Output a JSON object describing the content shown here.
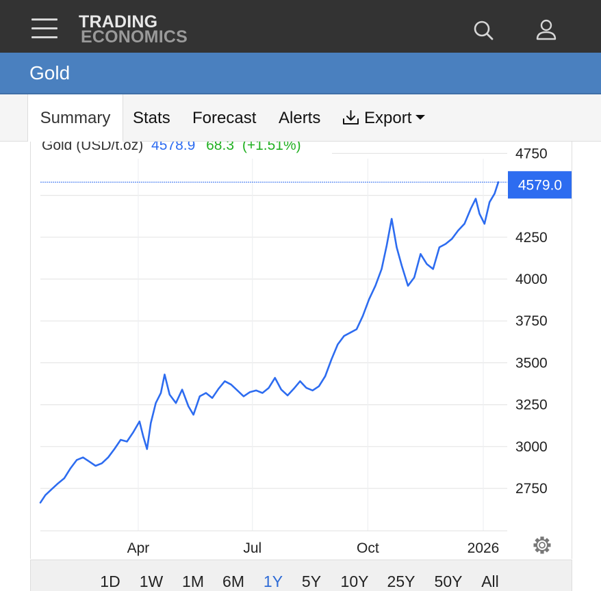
{
  "header": {
    "brand_line1": "TRADING",
    "brand_line2": "ECONOMICS",
    "menu_icon": "hamburger-menu-icon",
    "search_icon": "search-icon",
    "user_icon": "user-icon"
  },
  "page": {
    "title": "Gold"
  },
  "tabs": [
    "Summary",
    "Stats",
    "Forecast",
    "Alerts",
    "Export"
  ],
  "active_tab": "Summary",
  "legend": {
    "name": "Gold (USD/t.oz)",
    "price": "4578.9",
    "change": "68.3",
    "change_pct": "(+1.51%)"
  },
  "price_tag": "4579.0",
  "settings_icon": "gear-icon",
  "ranges": [
    "1D",
    "1W",
    "1M",
    "6M",
    "1Y",
    "5Y",
    "10Y",
    "25Y",
    "50Y",
    "All"
  ],
  "active_range": "1Y",
  "colors": {
    "line": "#2d6cf0",
    "accent": "#2e6bd6",
    "positive": "#22b022",
    "header_bg": "#333333",
    "title_bg": "#4a80bf"
  },
  "chart_data": {
    "type": "line",
    "title": "Gold (USD/t.oz)",
    "xlabel": "",
    "ylabel": "",
    "ylim": [
      2600,
      4800
    ],
    "y_ticks": [
      2750,
      3000,
      3250,
      3500,
      3750,
      4000,
      4250,
      4750
    ],
    "x_ticks": [
      "Apr",
      "Jul",
      "Oct",
      "2026"
    ],
    "x_tick_dates": [
      "2025-04-01",
      "2025-07-01",
      "2025-10-01",
      "2026-01-01"
    ],
    "current_value": 4579.0,
    "grid": true,
    "series": [
      {
        "name": "Gold (USD/t.oz)",
        "x": [
          "2025-01-13",
          "2025-01-17",
          "2025-01-22",
          "2025-01-27",
          "2025-02-01",
          "2025-02-06",
          "2025-02-11",
          "2025-02-16",
          "2025-02-21",
          "2025-02-26",
          "2025-03-03",
          "2025-03-08",
          "2025-03-13",
          "2025-03-18",
          "2025-03-23",
          "2025-03-28",
          "2025-04-02",
          "2025-04-05",
          "2025-04-08",
          "2025-04-11",
          "2025-04-15",
          "2025-04-19",
          "2025-04-22",
          "2025-04-26",
          "2025-05-01",
          "2025-05-06",
          "2025-05-11",
          "2025-05-15",
          "2025-05-20",
          "2025-05-25",
          "2025-05-30",
          "2025-06-04",
          "2025-06-09",
          "2025-06-14",
          "2025-06-19",
          "2025-06-24",
          "2025-06-29",
          "2025-07-04",
          "2025-07-09",
          "2025-07-14",
          "2025-07-19",
          "2025-07-24",
          "2025-07-29",
          "2025-08-03",
          "2025-08-08",
          "2025-08-13",
          "2025-08-18",
          "2025-08-23",
          "2025-08-28",
          "2025-09-02",
          "2025-09-07",
          "2025-09-12",
          "2025-09-17",
          "2025-09-22",
          "2025-09-27",
          "2025-10-02",
          "2025-10-07",
          "2025-10-12",
          "2025-10-16",
          "2025-10-20",
          "2025-10-24",
          "2025-10-28",
          "2025-11-02",
          "2025-11-07",
          "2025-11-12",
          "2025-11-17",
          "2025-11-22",
          "2025-11-27",
          "2025-12-02",
          "2025-12-07",
          "2025-12-12",
          "2025-12-17",
          "2025-12-22",
          "2025-12-26",
          "2025-12-29",
          "2026-01-02",
          "2026-01-06",
          "2026-01-10",
          "2026-01-13"
        ],
        "values": [
          2665,
          2710,
          2745,
          2780,
          2810,
          2870,
          2920,
          2935,
          2910,
          2885,
          2900,
          2935,
          2985,
          3040,
          3030,
          3085,
          3150,
          3060,
          2985,
          3140,
          3260,
          3320,
          3430,
          3310,
          3260,
          3340,
          3240,
          3190,
          3300,
          3320,
          3290,
          3345,
          3390,
          3370,
          3335,
          3300,
          3325,
          3335,
          3320,
          3350,
          3410,
          3340,
          3305,
          3345,
          3390,
          3350,
          3335,
          3360,
          3420,
          3520,
          3610,
          3660,
          3680,
          3700,
          3780,
          3880,
          3960,
          4060,
          4200,
          4360,
          4190,
          4080,
          3960,
          4010,
          4150,
          4090,
          4060,
          4190,
          4210,
          4240,
          4290,
          4330,
          4420,
          4480,
          4390,
          4330,
          4460,
          4510,
          4579
        ]
      }
    ]
  }
}
